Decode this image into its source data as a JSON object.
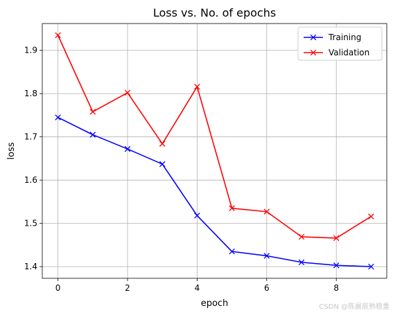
{
  "chart_data": {
    "type": "line",
    "title": "Loss vs. No. of epochs",
    "xlabel": "epoch",
    "ylabel": "loss",
    "x": [
      0,
      1,
      2,
      3,
      4,
      5,
      6,
      7,
      8,
      9
    ],
    "xlim": [
      -0.45,
      9.45
    ],
    "ylim": [
      1.373,
      1.962
    ],
    "xticks": [
      0,
      2,
      4,
      6,
      8
    ],
    "yticks": [
      1.4,
      1.5,
      1.6,
      1.7,
      1.8,
      1.9
    ],
    "xtick_labels": [
      "0",
      "2",
      "4",
      "6",
      "8"
    ],
    "ytick_labels": [
      "1.4",
      "1.5",
      "1.6",
      "1.7",
      "1.8",
      "1.9"
    ],
    "grid": true,
    "legend_position": "top-right",
    "series": [
      {
        "name": "Training",
        "color": "#0000ff",
        "marker": "x",
        "values": [
          1.745,
          1.705,
          1.672,
          1.637,
          1.518,
          1.435,
          1.425,
          1.41,
          1.403,
          1.4
        ]
      },
      {
        "name": "Validation",
        "color": "#ff0000",
        "marker": "x",
        "values": [
          1.935,
          1.758,
          1.802,
          1.684,
          1.816,
          1.535,
          1.527,
          1.469,
          1.466,
          1.516
        ]
      }
    ]
  },
  "watermark": "CSDN @陈晨辰熟稳重"
}
